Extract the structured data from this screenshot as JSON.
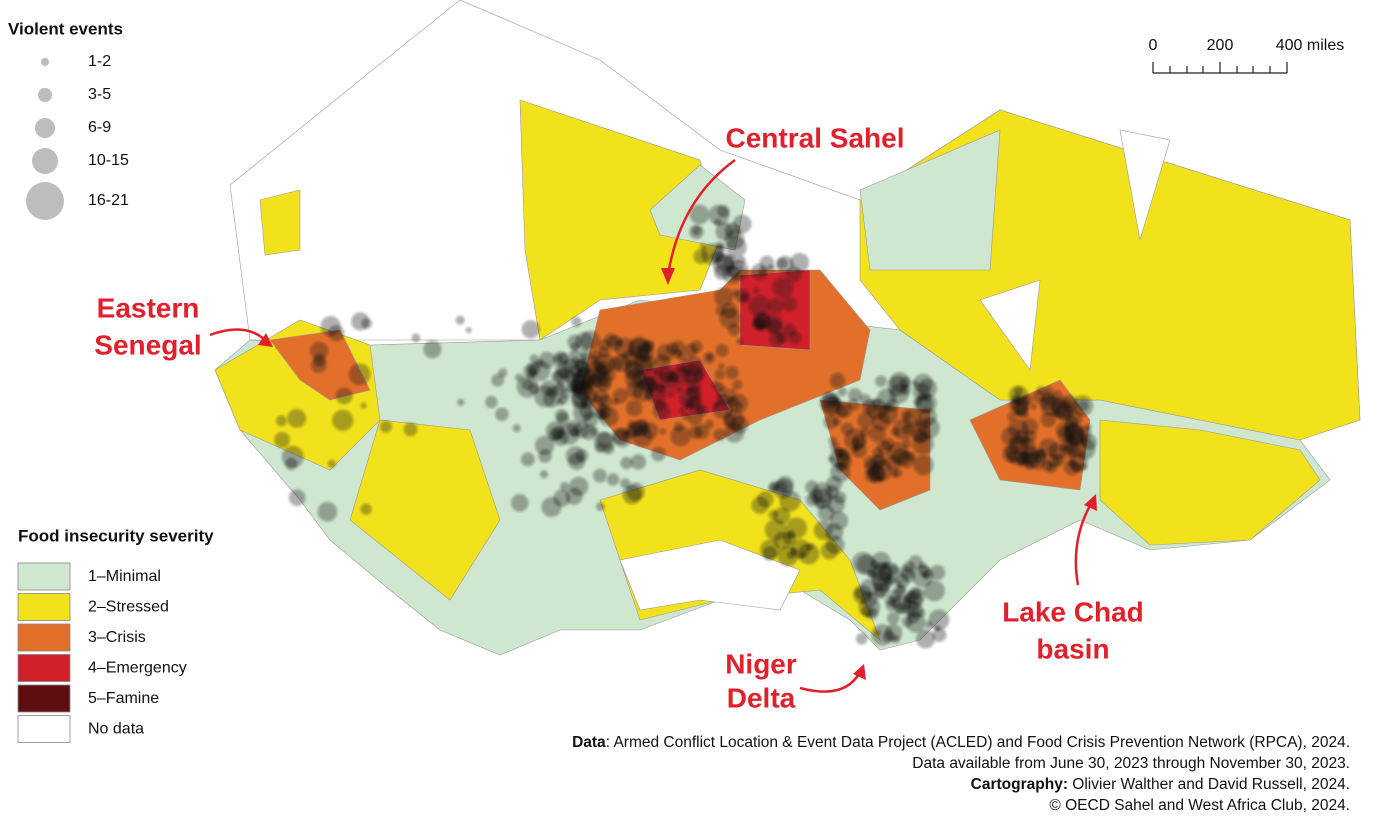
{
  "violent_events_legend": {
    "title": "Violent events",
    "items": [
      "1-2",
      "3-5",
      "6-9",
      "10-15",
      "16-21"
    ]
  },
  "severity_legend": {
    "title": "Food insecurity severity",
    "items": [
      {
        "label": "1–Minimal",
        "color": "#cfe6cf"
      },
      {
        "label": "2–Stressed",
        "color": "#f2e21c"
      },
      {
        "label": "3–Crisis",
        "color": "#e2702a"
      },
      {
        "label": "4–Emergency",
        "color": "#d0202a"
      },
      {
        "label": "5–Famine",
        "color": "#5e0e10"
      },
      {
        "label": "No data",
        "color": "#ffffff"
      }
    ]
  },
  "scale_bar": {
    "labels": [
      "0",
      "200",
      "400 miles"
    ]
  },
  "annotations": {
    "central_sahel": [
      "Central Sahel"
    ],
    "eastern_senegal": [
      "Eastern",
      "Senegal"
    ],
    "lake_chad": [
      "Lake Chad",
      "basin"
    ],
    "niger_delta": [
      "Niger",
      "Delta"
    ]
  },
  "credits": {
    "line1": {
      "bold": "Data",
      "text": ": Armed Conflict Location & Event Data Project (ACLED) and Food Crisis Prevention Network (RPCA), 2024."
    },
    "line2": "Data available from June 30, 2023 through November 30, 2023.",
    "line3": {
      "bold": "Cartography:",
      "text": " Olivier Walther and David Russell, 2024."
    },
    "line4": "© OECD Sahel and West Africa Club, 2024."
  }
}
